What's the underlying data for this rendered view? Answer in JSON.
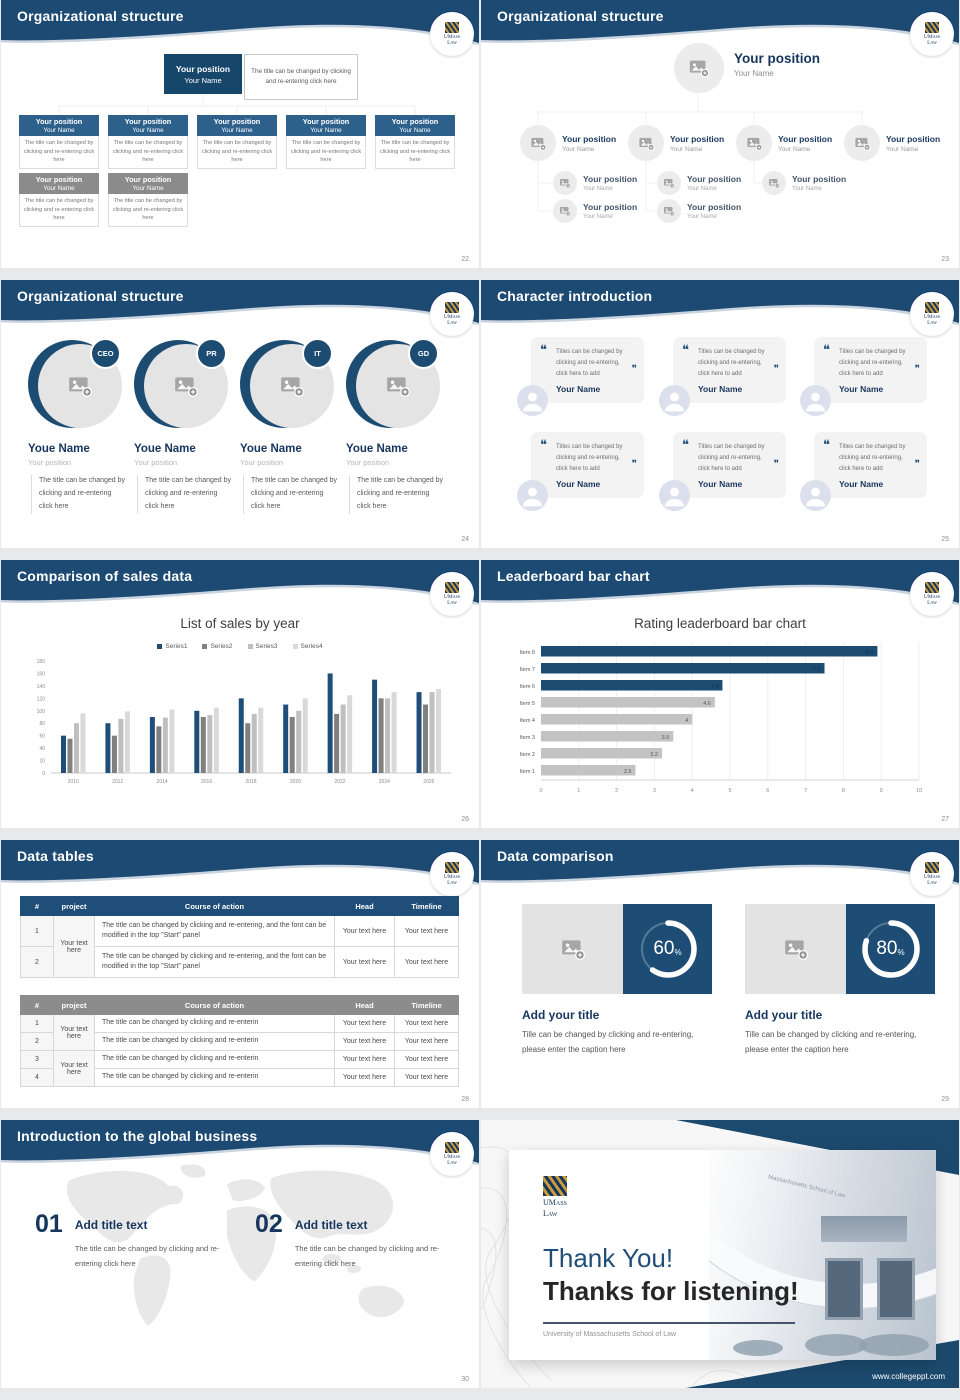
{
  "common": {
    "position": "Your position",
    "name": "Your Name",
    "note": "The title can be changed by clicking and re-entering click here",
    "open_quote": "❝",
    "close_quote": "❞"
  },
  "logo": {
    "top": "UMass",
    "bottom": "Law"
  },
  "colors": {
    "navy": "#1F4E79",
    "gray": "#8C8C8C",
    "accent_gold": "#C89C3C"
  },
  "slides": {
    "s22": {
      "title": "Organizational structure",
      "page": "22"
    },
    "s23": {
      "title": "Organizational structure",
      "page": "23"
    },
    "s24": {
      "title": "Organizational structure",
      "page": "24",
      "name": "Youe Name",
      "badges": [
        "CEO",
        "PR",
        "IT",
        "GD"
      ]
    },
    "s25": {
      "title": "Character introduction",
      "page": "25",
      "quote": "Titles can be changed by clicking and re-entering, click here to add"
    },
    "s26": {
      "title": "Comparison of sales data",
      "page": "26"
    },
    "s27": {
      "title": "Leaderboard bar chart",
      "page": "27"
    },
    "s28": {
      "title": "Data tables",
      "page": "28",
      "headers": [
        "#",
        "project",
        "Course of action",
        "Head",
        "Timeline"
      ],
      "t1": {
        "nums": [
          "1",
          "2"
        ],
        "project": "Your text here",
        "course": "The title can be changed by clicking and re-entering, and the font can be modified in the top \"Start\" panel",
        "cell": "Your text here"
      },
      "t2": {
        "nums": [
          "1",
          "2",
          "3",
          "4"
        ],
        "project": "Your text here",
        "course": "The title can be changed by clicking and re-enterin",
        "cell": "Your text here"
      }
    },
    "s29": {
      "title": "Data comparison",
      "page": "29",
      "add_title": "Add your title",
      "caption": "Tille can be changed by clicking and re-entering, please enter the caption here",
      "donuts": [
        {
          "value": "60",
          "unit": "%"
        },
        {
          "value": "80",
          "unit": "%"
        }
      ]
    },
    "s30": {
      "title": "Introduction to the global business",
      "page": "30",
      "add_title": "Add title text",
      "note": "The title can be changed by clicking and re-entering click here",
      "items": [
        {
          "num": "01"
        },
        {
          "num": "02"
        }
      ]
    },
    "s31": {
      "thank1": "Thank You!",
      "thank2": "Thanks for listening!",
      "subtitle": "University of Massachusetts School of Law",
      "website": "www.collegeppt.com",
      "building_sign": "Massachusetts School of Law"
    }
  },
  "chart_data": [
    {
      "type": "bar",
      "title": "List of sales by year",
      "categories": [
        "2010",
        "2012",
        "2014",
        "2016",
        "2018",
        "2020",
        "2022",
        "2024",
        "2026"
      ],
      "series": [
        {
          "name": "Series1",
          "color": "#1F4E79",
          "values": [
            60,
            80,
            90,
            100,
            120,
            110,
            160,
            150,
            130
          ]
        },
        {
          "name": "Series2",
          "color": "#808080",
          "values": [
            55,
            60,
            75,
            90,
            80,
            90,
            95,
            120,
            110
          ]
        },
        {
          "name": "Series3",
          "color": "#BFBFBF",
          "values": [
            80,
            87,
            89,
            93,
            95,
            100,
            110,
            120,
            130
          ]
        },
        {
          "name": "Series4",
          "color": "#D9D9D9",
          "values": [
            96,
            99,
            102,
            105,
            105,
            120,
            125,
            130,
            135
          ]
        }
      ],
      "ylim": [
        0,
        180
      ],
      "ytick": 20,
      "legend_position": "top",
      "grid": false
    },
    {
      "type": "bar-horizontal",
      "title": "Rating leaderboard bar chart",
      "categories": [
        "Item 1",
        "Item 2",
        "Item 3",
        "Item 4",
        "Item 5",
        "Item 6",
        "Item 7",
        "Item 8"
      ],
      "values": [
        2.5,
        3.2,
        3.5,
        4,
        4.6,
        4.8,
        7.5,
        8.9
      ],
      "labels": [
        "2.5",
        "3.2",
        "3.5",
        "4",
        "4.6",
        "4.8",
        "7.5",
        "8.9"
      ],
      "bar_colors": [
        "#C3C3C3",
        "#C3C3C3",
        "#C3C3C3",
        "#C3C3C3",
        "#C3C3C3",
        "#1D4C73",
        "#1D4C73",
        "#1D4C73"
      ],
      "xlim": [
        0,
        10
      ],
      "grid": true
    }
  ]
}
